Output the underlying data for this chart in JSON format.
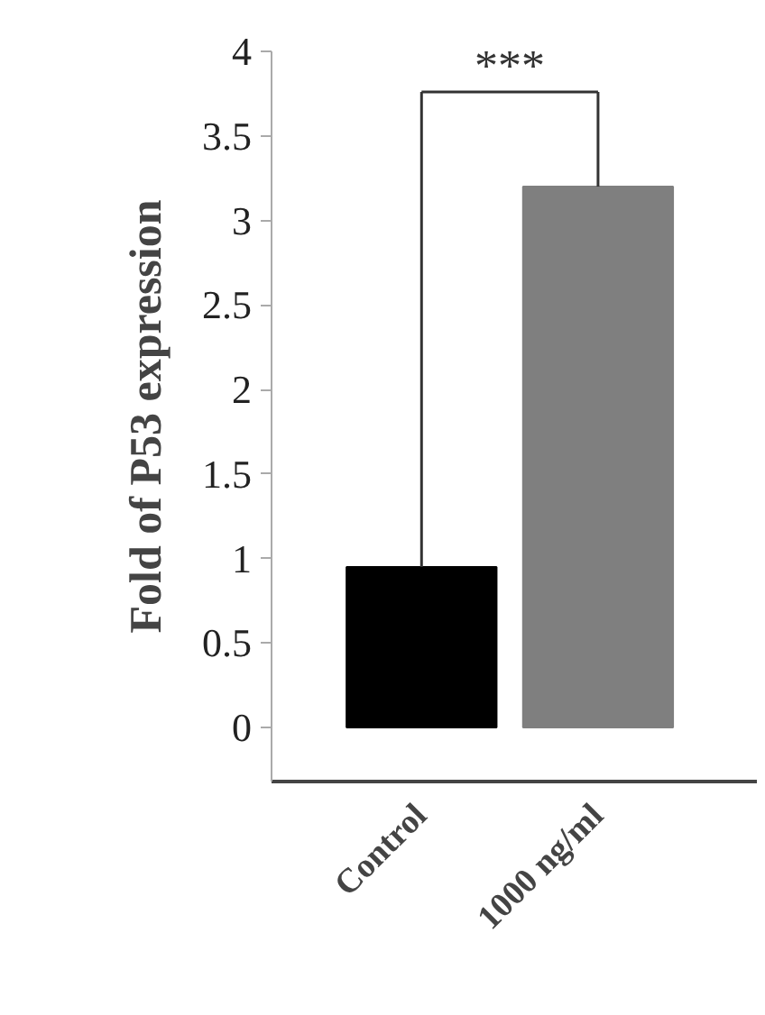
{
  "chart_data": {
    "type": "bar",
    "ylabel": "Fold of P53 expression",
    "categories": [
      "Control",
      "1000 ng/ml"
    ],
    "values": [
      0.95,
      3.2
    ],
    "colors": [
      "#000000",
      "#7f7f7f"
    ],
    "ylim": [
      0,
      4
    ],
    "yticks": [
      0,
      0.5,
      1,
      1.5,
      2,
      2.5,
      3,
      3.5,
      4
    ],
    "annotations": [
      {
        "text": "***",
        "x": "1000 ng/ml",
        "y": 3.2
      }
    ],
    "grid": false
  }
}
